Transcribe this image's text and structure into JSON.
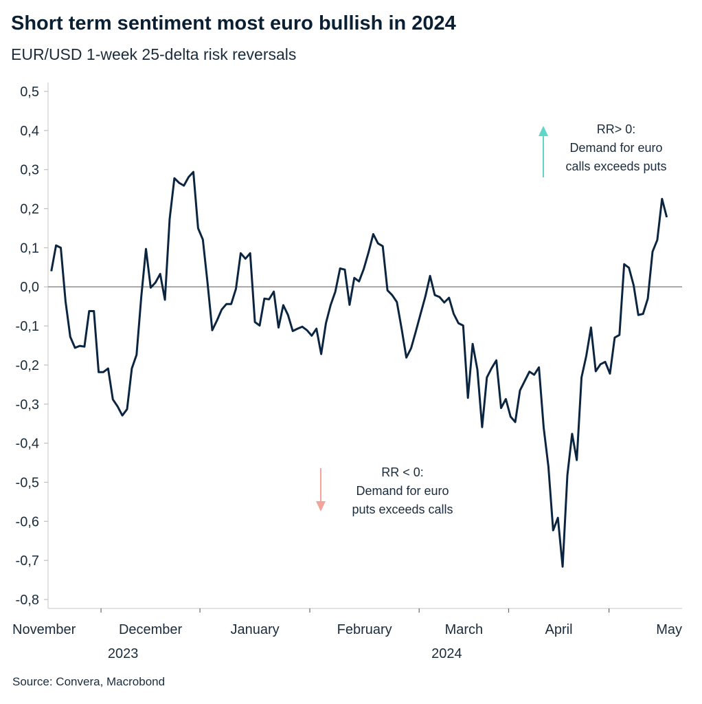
{
  "chart_data": {
    "type": "line",
    "title": "Short term sentiment most euro bullish in 2024",
    "subtitle": "EUR/USD 1-week 25-delta risk reversals",
    "source": "Source: Convera, Macrobond",
    "xlabel": "",
    "ylabel": "",
    "ylim": [
      -0.8,
      0.5
    ],
    "yticks": [
      0.5,
      0.4,
      0.3,
      0.2,
      0.1,
      0.0,
      -0.1,
      -0.2,
      -0.3,
      -0.4,
      -0.5,
      -0.6,
      -0.7,
      -0.8
    ],
    "ytick_labels": [
      "0,5",
      "0,4",
      "0,3",
      "0,2",
      "0,1",
      "0,0",
      "-0,1",
      "-0,2",
      "-0,3",
      "-0,4",
      "-0,5",
      "-0,6",
      "-0,7",
      "-0,8"
    ],
    "months": [
      "November",
      "December",
      "January",
      "February",
      "March",
      "April",
      "May"
    ],
    "month_boundaries_index": [
      10.5,
      31.4,
      54.6,
      77.7,
      96.6,
      117.8
    ],
    "years": [
      {
        "label": "2023",
        "month": "December"
      },
      {
        "label": "2024",
        "month": "March"
      }
    ],
    "grid": false,
    "line_color": "#0b2540",
    "series": [
      {
        "name": "EUR/USD 1-week 25-delta risk reversal",
        "values": [
          0.04,
          0.106,
          0.1,
          -0.037,
          -0.128,
          -0.156,
          -0.151,
          -0.153,
          -0.062,
          -0.062,
          -0.218,
          -0.218,
          -0.209,
          -0.288,
          -0.306,
          -0.329,
          -0.313,
          -0.209,
          -0.174,
          -0.025,
          0.097,
          -0.002,
          0.011,
          0.033,
          -0.033,
          0.174,
          0.278,
          0.266,
          0.259,
          0.281,
          0.294,
          0.15,
          0.121,
          0.011,
          -0.111,
          -0.086,
          -0.058,
          -0.044,
          -0.044,
          -0.005,
          0.086,
          0.072,
          0.086,
          -0.09,
          -0.099,
          -0.03,
          -0.032,
          -0.012,
          -0.104,
          -0.047,
          -0.072,
          -0.113,
          -0.107,
          -0.102,
          -0.111,
          -0.125,
          -0.107,
          -0.172,
          -0.093,
          -0.047,
          -0.012,
          0.047,
          0.044,
          -0.046,
          0.023,
          0.014,
          0.046,
          0.088,
          0.135,
          0.111,
          0.104,
          -0.009,
          -0.021,
          -0.039,
          -0.107,
          -0.181,
          -0.157,
          -0.114,
          -0.069,
          -0.025,
          0.028,
          -0.021,
          -0.026,
          -0.04,
          -0.028,
          -0.069,
          -0.093,
          -0.099,
          -0.284,
          -0.146,
          -0.212,
          -0.359,
          -0.232,
          -0.208,
          -0.188,
          -0.31,
          -0.287,
          -0.332,
          -0.346,
          -0.265,
          -0.241,
          -0.217,
          -0.225,
          -0.206,
          -0.36,
          -0.46,
          -0.623,
          -0.591,
          -0.716,
          -0.482,
          -0.376,
          -0.443,
          -0.232,
          -0.177,
          -0.104,
          -0.216,
          -0.198,
          -0.192,
          -0.222,
          -0.13,
          -0.123,
          0.058,
          0.049,
          0.004,
          -0.072,
          -0.069,
          -0.03,
          0.09,
          0.12,
          0.225,
          0.178
        ]
      }
    ],
    "annotations": [
      {
        "lines": [
          "RR> 0:",
          "Demand for euro",
          "calls exceeds puts"
        ],
        "arrow": "up",
        "color": "#5fd6c8"
      },
      {
        "lines": [
          "RR < 0:",
          "Demand for euro",
          "puts exceeds calls"
        ],
        "arrow": "down",
        "color": "#f3a49a"
      }
    ]
  }
}
